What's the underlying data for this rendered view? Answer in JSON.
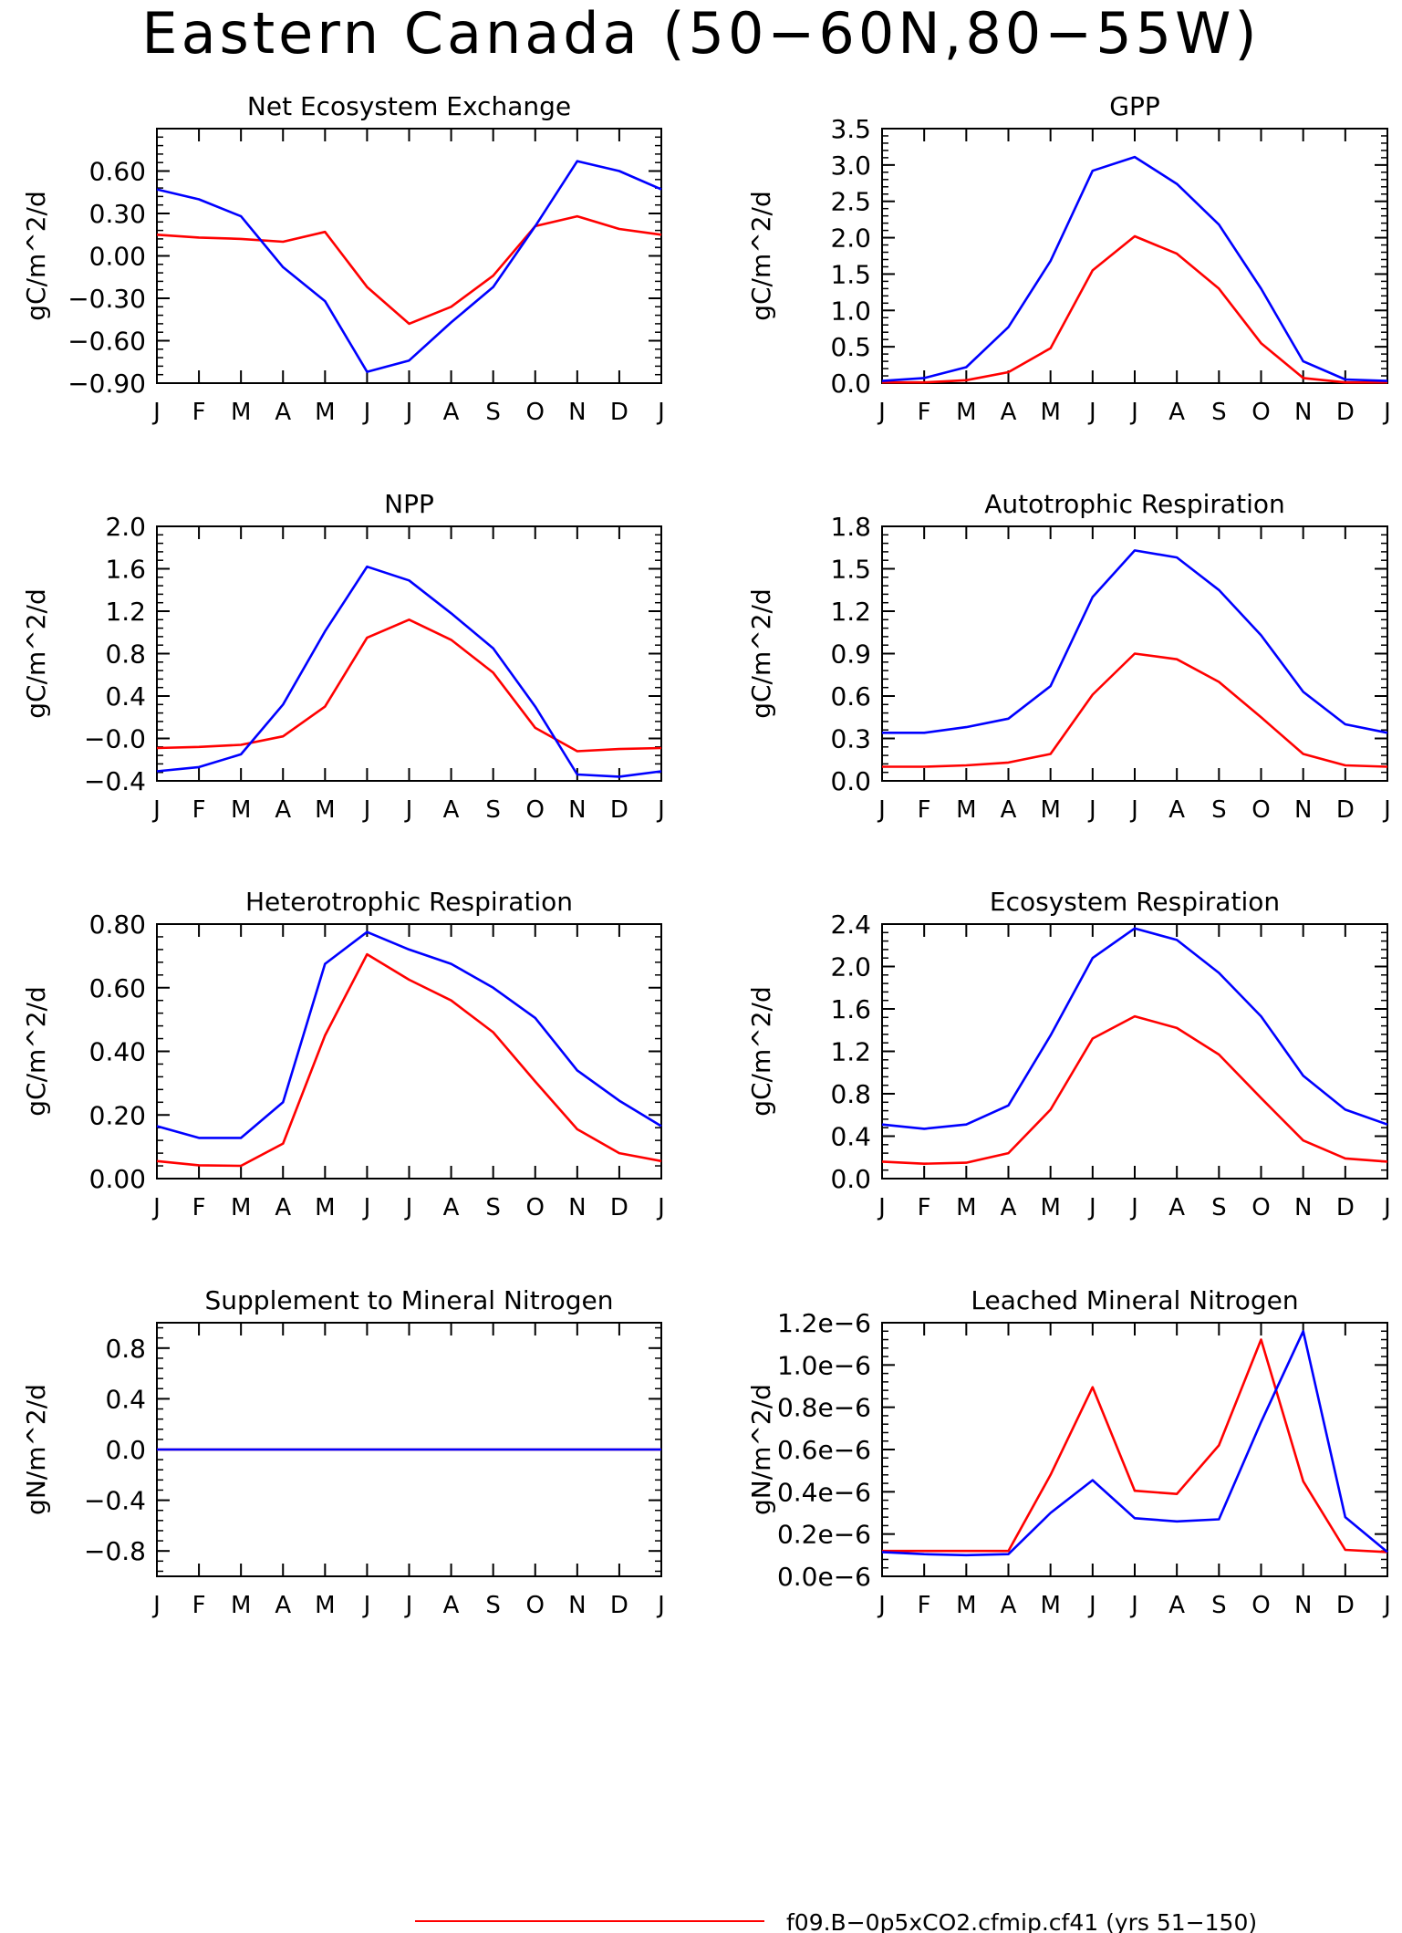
{
  "title": "Eastern Canada (50−60N,80−55W)",
  "colors": {
    "series_1": "#ff0000",
    "series_2": "#0000ff"
  },
  "legend": {
    "series_1_label": "f09.B−0p5xCO2.cfmip.cf41 (yrs 51−150)"
  },
  "chart_data": [
    {
      "type": "line",
      "title": "Net Ecosystem Exchange",
      "ylabel": "gC/m^2/d",
      "xlabel": "",
      "categories": [
        "J",
        "F",
        "M",
        "A",
        "M",
        "J",
        "J",
        "A",
        "S",
        "O",
        "N",
        "D",
        "J"
      ],
      "ylim": [
        -0.9,
        0.9
      ],
      "yticks": [
        -0.9,
        -0.6,
        -0.3,
        0.0,
        0.3,
        0.6
      ],
      "ytick_labels": [
        "−0.90",
        "−0.60",
        "−0.30",
        "0.00",
        "0.30",
        "0.60"
      ],
      "series": [
        {
          "values": [
            0.15,
            0.13,
            0.12,
            0.1,
            0.17,
            -0.22,
            -0.48,
            -0.36,
            -0.14,
            0.21,
            0.28,
            0.19,
            0.15
          ]
        },
        {
          "values": [
            0.47,
            0.4,
            0.28,
            -0.08,
            -0.32,
            -0.82,
            -0.74,
            -0.47,
            -0.22,
            0.21,
            0.67,
            0.6,
            0.47
          ]
        }
      ]
    },
    {
      "type": "line",
      "title": "GPP",
      "ylabel": "gC/m^2/d",
      "xlabel": "",
      "categories": [
        "J",
        "F",
        "M",
        "A",
        "M",
        "J",
        "J",
        "A",
        "S",
        "O",
        "N",
        "D",
        "J"
      ],
      "ylim": [
        0,
        3.5
      ],
      "yticks": [
        0,
        0.5,
        1.0,
        1.5,
        2.0,
        2.5,
        3.0,
        3.5
      ],
      "ytick_labels": [
        "0.0",
        "0.5",
        "1.0",
        "1.5",
        "2.0",
        "2.5",
        "3.0",
        "3.5"
      ],
      "series": [
        {
          "values": [
            0.01,
            0.01,
            0.04,
            0.15,
            0.48,
            1.55,
            2.02,
            1.78,
            1.3,
            0.55,
            0.07,
            0.01,
            0.01
          ]
        },
        {
          "values": [
            0.03,
            0.07,
            0.22,
            0.77,
            1.68,
            2.92,
            3.11,
            2.74,
            2.18,
            1.3,
            0.3,
            0.05,
            0.03
          ]
        }
      ]
    },
    {
      "type": "line",
      "title": "NPP",
      "ylabel": "gC/m^2/d",
      "xlabel": "",
      "categories": [
        "J",
        "F",
        "M",
        "A",
        "M",
        "J",
        "J",
        "A",
        "S",
        "O",
        "N",
        "D",
        "J"
      ],
      "ylim": [
        -0.4,
        2.0
      ],
      "yticks": [
        -0.4,
        0.0,
        0.4,
        0.8,
        1.2,
        1.6,
        2.0
      ],
      "ytick_labels": [
        "−0.4",
        "−0.0",
        "0.4",
        "0.8",
        "1.2",
        "1.6",
        "2.0"
      ],
      "series": [
        {
          "values": [
            -0.09,
            -0.08,
            -0.06,
            0.02,
            0.3,
            0.95,
            1.12,
            0.93,
            0.62,
            0.1,
            -0.12,
            -0.1,
            -0.09
          ]
        },
        {
          "values": [
            -0.31,
            -0.27,
            -0.15,
            0.32,
            1.01,
            1.62,
            1.49,
            1.18,
            0.85,
            0.3,
            -0.34,
            -0.36,
            -0.31
          ]
        }
      ]
    },
    {
      "type": "line",
      "title": "Autotrophic Respiration",
      "ylabel": "gC/m^2/d",
      "xlabel": "",
      "categories": [
        "J",
        "F",
        "M",
        "A",
        "M",
        "J",
        "J",
        "A",
        "S",
        "O",
        "N",
        "D",
        "J"
      ],
      "ylim": [
        0,
        1.8
      ],
      "yticks": [
        0,
        0.3,
        0.6,
        0.9,
        1.2,
        1.5,
        1.8
      ],
      "ytick_labels": [
        "0.0",
        "0.3",
        "0.6",
        "0.9",
        "1.2",
        "1.5",
        "1.8"
      ],
      "series": [
        {
          "values": [
            0.1,
            0.1,
            0.11,
            0.13,
            0.19,
            0.61,
            0.9,
            0.86,
            0.7,
            0.45,
            0.19,
            0.11,
            0.1
          ]
        },
        {
          "values": [
            0.34,
            0.34,
            0.38,
            0.44,
            0.67,
            1.3,
            1.63,
            1.58,
            1.35,
            1.03,
            0.63,
            0.4,
            0.34
          ]
        }
      ]
    },
    {
      "type": "line",
      "title": "Heterotrophic Respiration",
      "ylabel": "gC/m^2/d",
      "xlabel": "",
      "categories": [
        "J",
        "F",
        "M",
        "A",
        "M",
        "J",
        "J",
        "A",
        "S",
        "O",
        "N",
        "D",
        "J"
      ],
      "ylim": [
        0,
        0.8
      ],
      "yticks": [
        0,
        0.2,
        0.4,
        0.6,
        0.8
      ],
      "ytick_labels": [
        "0.00",
        "0.20",
        "0.40",
        "0.60",
        "0.80"
      ],
      "series": [
        {
          "values": [
            0.055,
            0.042,
            0.04,
            0.11,
            0.45,
            0.705,
            0.625,
            0.56,
            0.46,
            0.305,
            0.155,
            0.08,
            0.055
          ]
        },
        {
          "values": [
            0.165,
            0.128,
            0.128,
            0.24,
            0.675,
            0.775,
            0.72,
            0.675,
            0.6,
            0.505,
            0.34,
            0.245,
            0.165
          ]
        }
      ]
    },
    {
      "type": "line",
      "title": "Ecosystem Respiration",
      "ylabel": "gC/m^2/d",
      "xlabel": "",
      "categories": [
        "J",
        "F",
        "M",
        "A",
        "M",
        "J",
        "J",
        "A",
        "S",
        "O",
        "N",
        "D",
        "J"
      ],
      "ylim": [
        0,
        2.4
      ],
      "yticks": [
        0,
        0.4,
        0.8,
        1.2,
        1.6,
        2.0,
        2.4
      ],
      "ytick_labels": [
        "0.0",
        "0.4",
        "0.8",
        "1.2",
        "1.6",
        "2.0",
        "2.4"
      ],
      "series": [
        {
          "values": [
            0.16,
            0.14,
            0.15,
            0.24,
            0.65,
            1.32,
            1.53,
            1.42,
            1.17,
            0.76,
            0.36,
            0.19,
            0.16
          ]
        },
        {
          "values": [
            0.51,
            0.47,
            0.51,
            0.69,
            1.35,
            2.08,
            2.36,
            2.25,
            1.94,
            1.53,
            0.97,
            0.65,
            0.51
          ]
        }
      ]
    },
    {
      "type": "line",
      "title": "Supplement to Mineral Nitrogen",
      "ylabel": "gN/m^2/d",
      "xlabel": "",
      "categories": [
        "J",
        "F",
        "M",
        "A",
        "M",
        "J",
        "J",
        "A",
        "S",
        "O",
        "N",
        "D",
        "J"
      ],
      "ylim": [
        -1.0,
        1.0
      ],
      "yticks": [
        -0.8,
        -0.4,
        0.0,
        0.4,
        0.8
      ],
      "ytick_labels": [
        "−0.8",
        "−0.4",
        "0.0",
        "0.4",
        "0.8"
      ],
      "series": [
        {
          "values": [
            0,
            0,
            0,
            0,
            0,
            0,
            0,
            0,
            0,
            0,
            0,
            0,
            0
          ]
        },
        {
          "values": [
            0,
            0,
            0,
            0,
            0,
            0,
            0,
            0,
            0,
            0,
            0,
            0,
            0
          ]
        }
      ]
    },
    {
      "type": "line",
      "title": "Leached Mineral Nitrogen",
      "ylabel": "gN/m^2/d",
      "xlabel": "",
      "categories": [
        "J",
        "F",
        "M",
        "A",
        "M",
        "J",
        "J",
        "A",
        "S",
        "O",
        "N",
        "D",
        "J"
      ],
      "ylim": [
        0,
        1.2e-06
      ],
      "yticks": [
        0,
        2e-07,
        4e-07,
        6e-07,
        8e-07,
        1e-06,
        1.2e-06
      ],
      "ytick_labels": [
        "0.0e−6",
        "0.2e−6",
        "0.4e−6",
        "0.6e−6",
        "0.8e−6",
        "1.0e−6",
        "1.2e−6"
      ],
      "series": [
        {
          "values": [
            1.2e-07,
            1.2e-07,
            1.2e-07,
            1.2e-07,
            4.8e-07,
            8.95e-07,
            4.05e-07,
            3.9e-07,
            6.2e-07,
            1.12e-06,
            4.5e-07,
            1.25e-07,
            1.15e-07
          ]
        },
        {
          "values": [
            1.15e-07,
            1.05e-07,
            1e-07,
            1.05e-07,
            3e-07,
            4.55e-07,
            2.75e-07,
            2.6e-07,
            2.7e-07,
            7.3e-07,
            1.16e-06,
            2.8e-07,
            1.15e-07
          ]
        }
      ]
    }
  ]
}
